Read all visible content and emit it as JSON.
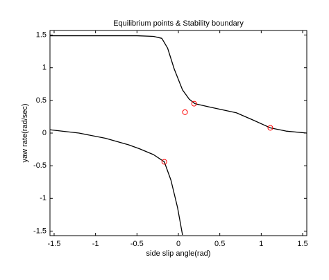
{
  "chart_data": {
    "type": "line",
    "title": "Equilibrium points & Stability boundary",
    "xlabel": "side slip angle(rad)",
    "ylabel": "yaw rate(rad/sec)",
    "xlim": [
      -1.55,
      1.55
    ],
    "ylim": [
      -1.57,
      1.57
    ],
    "xticks": [
      -1.5,
      -1,
      -0.5,
      0,
      0.5,
      1,
      1.5
    ],
    "yticks": [
      -1.5,
      -1,
      -0.5,
      0,
      0.5,
      1,
      1.5
    ],
    "grid": false,
    "series": [
      {
        "type": "line",
        "color": "#000000",
        "x": [
          -1.55,
          -1.0,
          -0.5,
          -0.3,
          -0.2,
          -0.13,
          -0.05,
          0.05,
          0.13,
          0.2,
          0.37,
          0.7,
          0.9,
          1.11,
          1.3,
          1.55
        ],
        "values": [
          1.49,
          1.49,
          1.49,
          1.48,
          1.45,
          1.3,
          0.98,
          0.66,
          0.52,
          0.45,
          0.4,
          0.31,
          0.2,
          0.08,
          0.03,
          0.0
        ]
      },
      {
        "type": "line",
        "color": "#000000",
        "x": [
          -1.55,
          -1.2,
          -0.88,
          -0.6,
          -0.47,
          -0.3,
          -0.17,
          -0.09,
          -0.01,
          0.05
        ],
        "values": [
          0.05,
          0.0,
          -0.08,
          -0.18,
          -0.24,
          -0.33,
          -0.44,
          -0.72,
          -1.14,
          -1.56
        ]
      },
      {
        "type": "scatter",
        "color": "#ff0000",
        "x": [
          -0.17,
          0.08,
          0.19,
          1.11
        ],
        "values": [
          -0.44,
          0.32,
          0.45,
          0.08
        ]
      }
    ]
  }
}
